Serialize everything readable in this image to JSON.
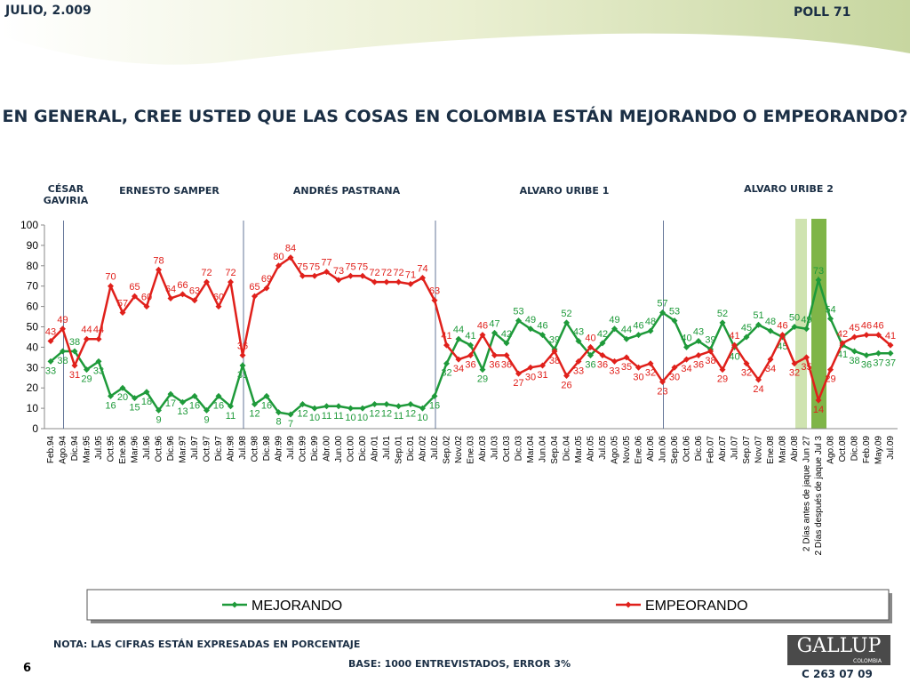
{
  "header": {
    "date": "JULIO, 2.009",
    "poll": "POLL 71"
  },
  "chart_data": {
    "type": "line",
    "title": "EN GENERAL, CREE USTED QUE LAS COSAS EN COLOMBIA ESTÁN MEJORANDO O EMPEORANDO?",
    "periods": [
      "CÉSAR GAVIRIA",
      "ERNESTO SAMPER",
      "ANDRÉS  PASTRANA",
      "ALVARO URIBE 1",
      "ALVARO URIBE 2"
    ],
    "categories": [
      "Feb.94",
      "Ago.94",
      "Dic.94",
      "Mar.95",
      "Jul.95",
      "Oct.95",
      "Ene.96",
      "Mar.96",
      "Jul.96",
      "Oct.96",
      "Dic.96",
      "Mar.97",
      "Jul.97",
      "Oct.97",
      "Dic.97",
      "Abr.98",
      "Jul.98",
      "Oct.98",
      "Dic.98",
      "Abr.99",
      "Jul.99",
      "Oct.99",
      "Dic.99",
      "Abr.00",
      "Jun.00",
      "Oct.00",
      "Dic.00",
      "Abr.01",
      "Jul.01",
      "Sep.01",
      "Dic.01",
      "Abr.02",
      "Jul.02",
      "Sep.02",
      "Nov.02",
      "Ene.03",
      "Abr.03",
      "Jul.03",
      "Oct.03",
      "Dic.03",
      "Mar.04",
      "Jun.04",
      "Sep.04",
      "Dic.04",
      "Mar.05",
      "Abr.05",
      "Jul.05",
      "Ago.05",
      "Nov.05",
      "Ene.06",
      "Abr.06",
      "Jun.06",
      "Sep.06",
      "Oct.06",
      "Dic.06",
      "Feb.07",
      "Abr.07",
      "Jul.07",
      "Sep.07",
      "Nov.07",
      "Ene.08",
      "Mar.08",
      "Abr.08",
      "2 Días antes de jaque Jun 27",
      "2 Días después de jaque Jul 3",
      "Ago.08",
      "Oct.08",
      "Dic.08",
      "Feb.09",
      "May.09",
      "Jul.09"
    ],
    "series": [
      {
        "name": "MEJORANDO",
        "color": "#1e9a3a",
        "values": [
          33,
          38,
          38,
          29,
          33,
          16,
          20,
          15,
          18,
          9,
          17,
          13,
          16,
          9,
          16,
          11,
          31,
          12,
          16,
          8,
          7,
          12,
          10,
          11,
          11,
          10,
          10,
          12,
          12,
          11,
          12,
          10,
          16,
          32,
          44,
          41,
          29,
          47,
          42,
          53,
          49,
          46,
          39,
          52,
          43,
          36,
          42,
          49,
          44,
          46,
          48,
          57,
          53,
          40,
          43,
          39,
          52,
          40,
          45,
          51,
          48,
          45,
          50,
          49,
          73,
          54,
          41,
          38,
          36,
          37,
          37
        ]
      },
      {
        "name": "EMPEORANDO",
        "color": "#e0201b",
        "values": [
          43,
          49,
          31,
          44,
          44,
          70,
          57,
          65,
          60,
          78,
          64,
          66,
          63,
          72,
          60,
          72,
          36,
          65,
          69,
          80,
          84,
          75,
          75,
          77,
          73,
          75,
          75,
          72,
          72,
          72,
          71,
          74,
          63,
          41,
          34,
          36,
          46,
          36,
          36,
          27,
          30,
          31,
          38,
          26,
          33,
          40,
          36,
          33,
          35,
          30,
          32,
          23,
          30,
          34,
          36,
          38,
          29,
          41,
          32,
          24,
          34,
          46,
          32,
          35,
          14,
          29,
          42,
          45,
          46,
          46,
          41
        ]
      }
    ],
    "ylim": [
      0,
      100
    ],
    "yticks": [
      0,
      10,
      20,
      30,
      40,
      50,
      60,
      70,
      80,
      90,
      100
    ]
  },
  "footer": {
    "note": "NOTA: LAS CIFRAS ESTÁN EXPRESADAS EN PORCENTAJE",
    "base": "BASE: 1000 ENTREVISTADOS, ERROR 3%",
    "page": "6",
    "logo": "GALLUP",
    "logo_sub": "COLOMBIA",
    "code": "C 263 07 09"
  }
}
